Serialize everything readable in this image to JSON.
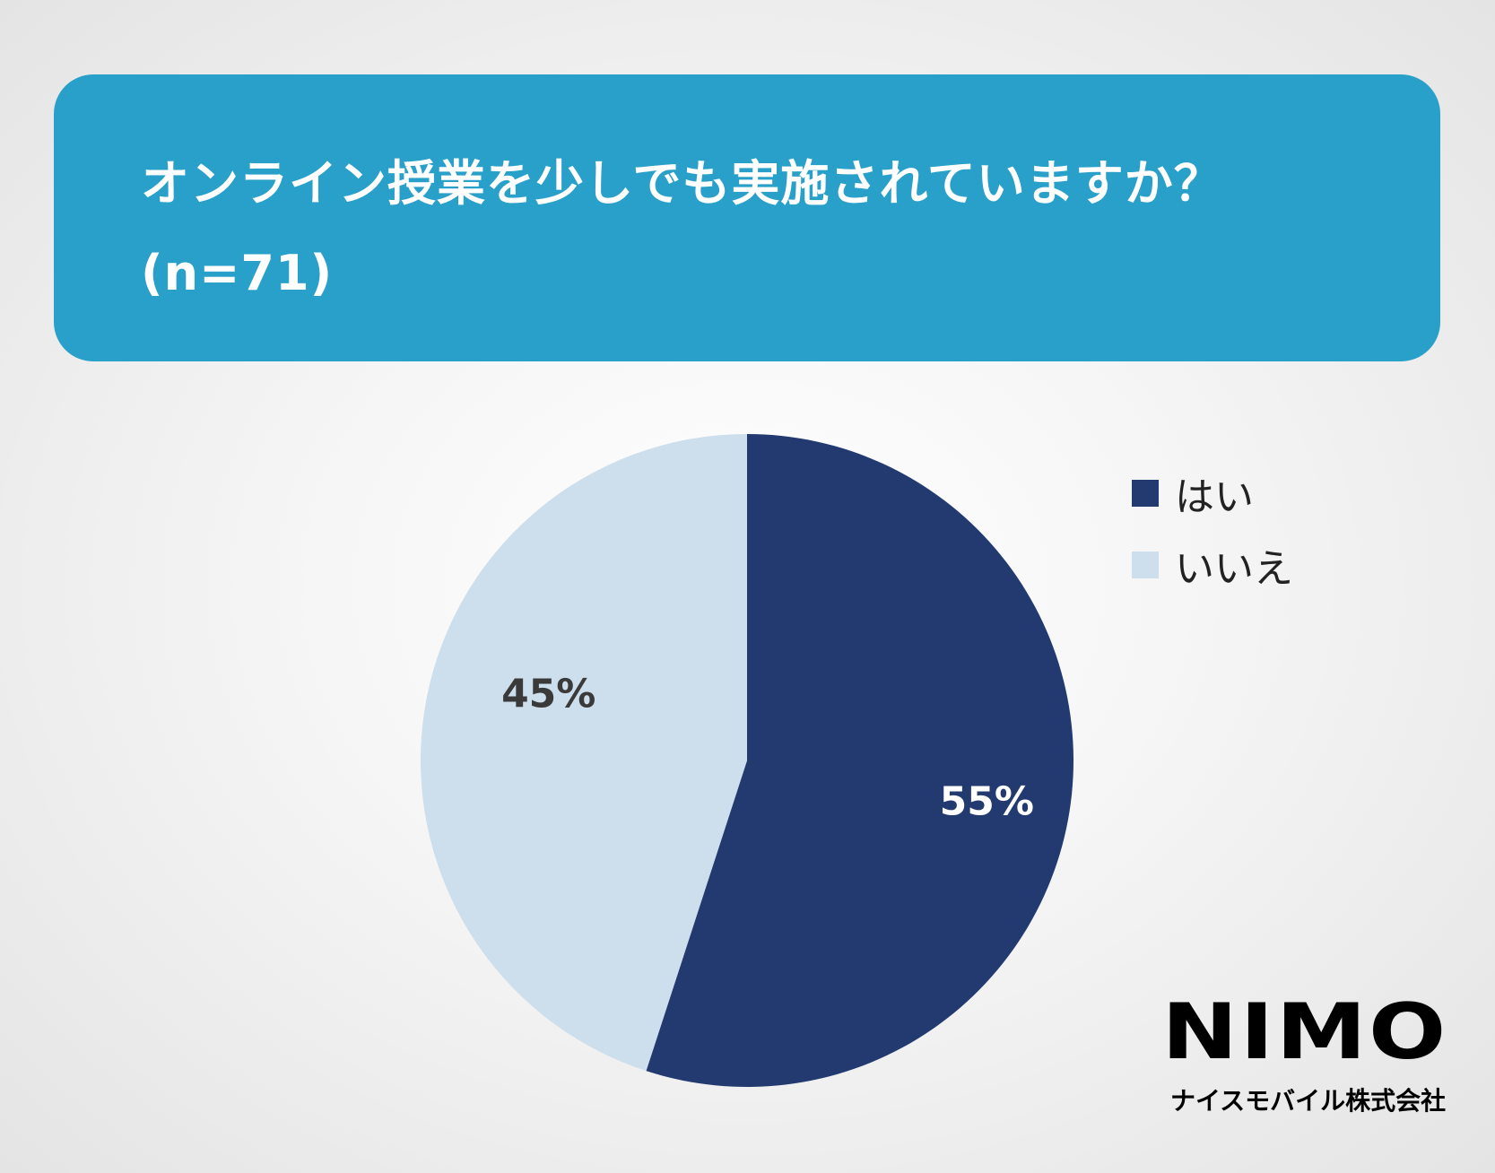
{
  "header": {
    "title_line1": "オンライン授業を少しでも実施されていますか？",
    "title_line2": "(n=71)",
    "background_color": "#29a0c9"
  },
  "chart_data": {
    "type": "pie",
    "title": "オンライン授業を少しでも実施されていますか？ (n=71)",
    "slices": [
      {
        "label": "はい",
        "value": 55,
        "display": "55%",
        "color": "#223a70",
        "label_color": "#ffffff"
      },
      {
        "label": "いいえ",
        "value": 45,
        "display": "45%",
        "color": "#cddeed",
        "label_color": "#3a3a3a"
      }
    ],
    "start_angle": "12 o'clock",
    "direction": "clockwise",
    "legend": {
      "position": "top-right",
      "entries": [
        "はい",
        "いいえ"
      ]
    }
  },
  "brand": {
    "logo": "NIMO",
    "company": "ナイスモバイル株式会社"
  }
}
